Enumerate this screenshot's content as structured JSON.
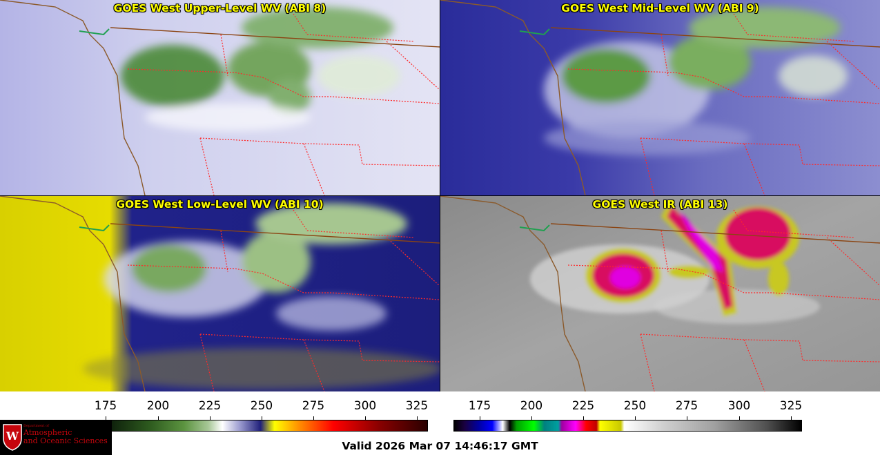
{
  "panels": [
    {
      "title": "GOES West Upper-Level WV (ABI 8)",
      "palette": "wv-upper"
    },
    {
      "title": "GOES West Mid-Level WV (ABI 9)",
      "palette": "wv-mid"
    },
    {
      "title": "GOES West Low-Level WV (ABI 10)",
      "palette": "wv-low"
    },
    {
      "title": "GOES West IR (ABI 13)",
      "palette": "ir"
    }
  ],
  "colorbars": {
    "wv": {
      "ticks": [
        "175",
        "200",
        "225",
        "250",
        "275",
        "300",
        "325"
      ]
    },
    "ir": {
      "ticks": [
        "175",
        "200",
        "225",
        "250",
        "275",
        "300",
        "325"
      ]
    }
  },
  "footer": {
    "valid_text": "Valid 2026 Mar 07 14:46:17 GMT"
  },
  "logo": {
    "line1": "Department of",
    "line2": "Atmospheric",
    "line3": "and Oceanic Sciences",
    "icon": "uw-crest-icon"
  },
  "colors": {
    "coastline": "#8b5a2b",
    "state_border": "#ff2020",
    "country_border": "#8b4513",
    "title_text": "#ffff00"
  }
}
